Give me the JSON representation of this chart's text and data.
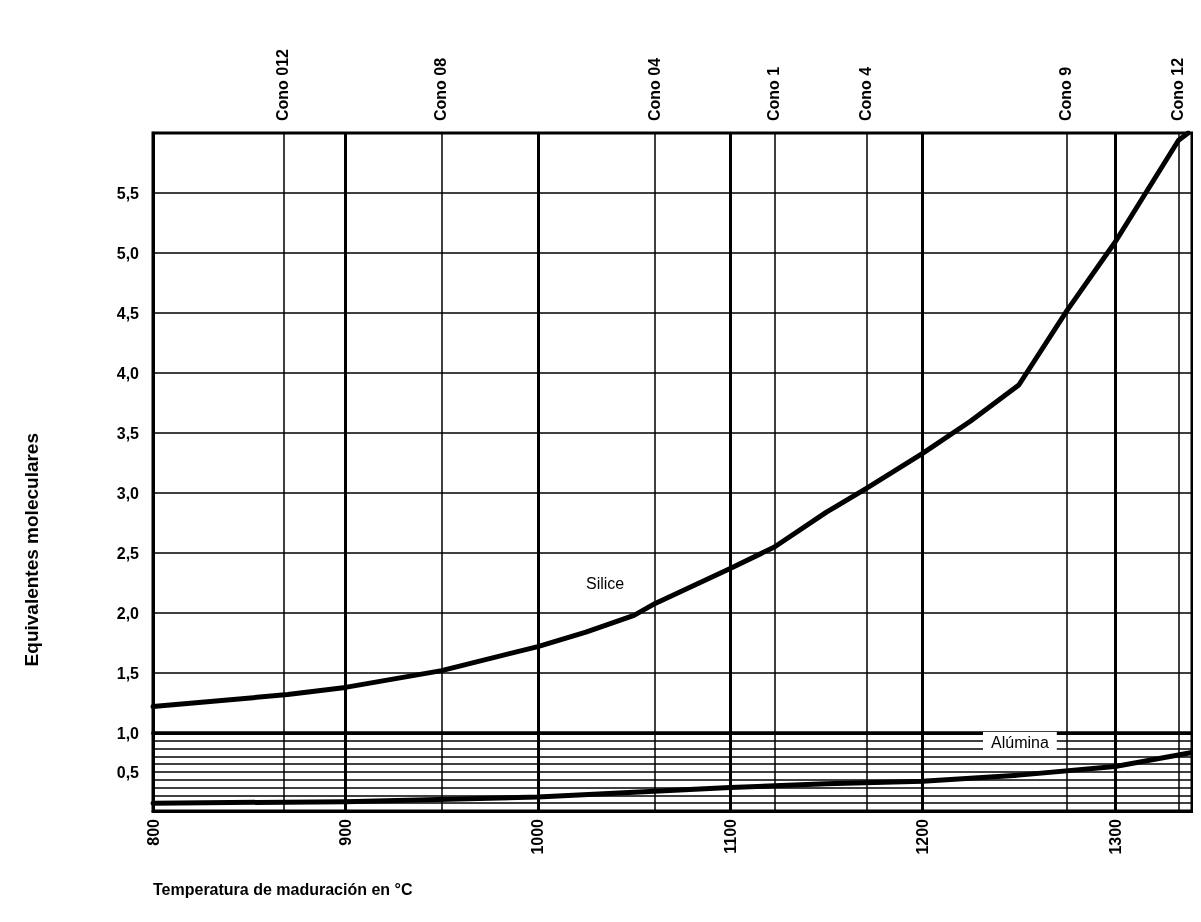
{
  "chart_data": [
    {
      "type": "line",
      "ylabel": "Equivalentes moleculares",
      "xlim": [
        800,
        1340
      ],
      "ylim": [
        1.0,
        6.0
      ],
      "xticks": [
        {
          "value": 800,
          "label": null
        },
        {
          "value": 900,
          "label": null
        },
        {
          "value": 1000,
          "label": null
        },
        {
          "value": 1100,
          "label": null
        },
        {
          "value": 1200,
          "label": null
        },
        {
          "value": 1300,
          "label": null
        }
      ],
      "ref_lines": [
        {
          "axis": "x",
          "value": 868,
          "label": "Cono 012"
        },
        {
          "axis": "x",
          "value": 950,
          "label": "Cono 08"
        },
        {
          "axis": "x",
          "value": 1061,
          "label": "Cono 04"
        },
        {
          "axis": "x",
          "value": 1123,
          "label": "Cono 1"
        },
        {
          "axis": "x",
          "value": 1171,
          "label": "Cono 4"
        },
        {
          "axis": "x",
          "value": 1275,
          "label": "Cono 9"
        },
        {
          "axis": "x",
          "value": 1333,
          "label": "Cono 12"
        }
      ],
      "yticks": [
        {
          "value": 1.5,
          "label": "1,5"
        },
        {
          "value": 2.0,
          "label": "2,0"
        },
        {
          "value": 2.5,
          "label": "2,5"
        },
        {
          "value": 3.0,
          "label": "3,0"
        },
        {
          "value": 3.5,
          "label": "3,5"
        },
        {
          "value": 4.0,
          "label": "4,0"
        },
        {
          "value": 4.5,
          "label": "4,5"
        },
        {
          "value": 5.0,
          "label": "5,0"
        },
        {
          "value": 5.5,
          "label": "5,5"
        }
      ],
      "tick_labels": "y",
      "grid": true,
      "marker": "none",
      "series": [
        {
          "color": "#000000",
          "x": [
            800,
            870,
            900,
            950,
            1000,
            1025,
            1050,
            1061,
            1100,
            1123,
            1150,
            1171,
            1200,
            1225,
            1250,
            1275,
            1300,
            1333,
            1338
          ],
          "values": [
            1.22,
            1.32,
            1.38,
            1.52,
            1.72,
            1.84,
            1.98,
            2.08,
            2.37,
            2.55,
            2.84,
            3.04,
            3.33,
            3.6,
            3.9,
            4.52,
            5.09,
            5.94,
            6.0
          ]
        }
      ],
      "annotations": [
        "Silice"
      ]
    },
    {
      "type": "line",
      "xlabel": "Temperatura de maduración en °C",
      "xlim": [
        800,
        1340
      ],
      "ylim": [
        0,
        1.0
      ],
      "xticks": [
        800,
        900,
        1000,
        1100,
        1200,
        1300
      ],
      "ref_lines": [
        {
          "axis": "x",
          "value": 868
        },
        {
          "axis": "x",
          "value": 950
        },
        {
          "axis": "x",
          "value": 1061
        },
        {
          "axis": "x",
          "value": 1123
        },
        {
          "axis": "x",
          "value": 1171
        },
        {
          "axis": "x",
          "value": 1275
        },
        {
          "axis": "x",
          "value": 1333
        }
      ],
      "yticks": [
        {
          "value": 0.1,
          "label": null
        },
        {
          "value": 0.2,
          "label": null
        },
        {
          "value": 0.3,
          "label": null
        },
        {
          "value": 0.4,
          "label": null
        },
        {
          "value": 0.5,
          "label": "0,5"
        },
        {
          "value": 0.6,
          "label": null
        },
        {
          "value": 0.7,
          "label": null
        },
        {
          "value": 0.8,
          "label": null
        },
        {
          "value": 0.9,
          "label": null
        },
        {
          "value": 1.0,
          "label": "1,0"
        }
      ],
      "grid": true,
      "marker": "none",
      "series": [
        {
          "color": "#000000",
          "x": [
            800,
            900,
            1000,
            1050,
            1100,
            1150,
            1200,
            1250,
            1300,
            1340
          ],
          "values": [
            0.1,
            0.12,
            0.18,
            0.24,
            0.3,
            0.35,
            0.38,
            0.46,
            0.57,
            0.75
          ]
        }
      ],
      "annotations": [
        "Alúmina"
      ]
    }
  ]
}
